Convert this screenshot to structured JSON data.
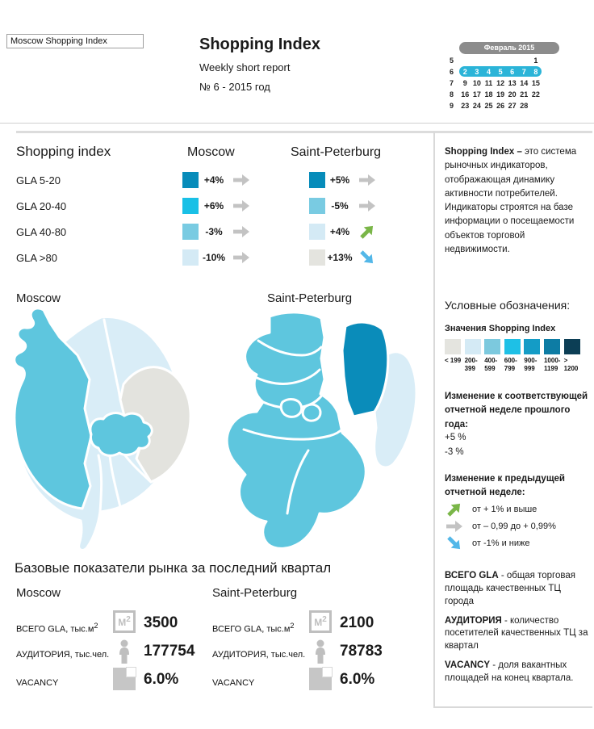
{
  "header": {
    "selector_value": "Moscow Shopping Index",
    "title": "Shopping Index",
    "subtitle": "Weekly short report",
    "issue": "№ 6 - 2015 год"
  },
  "calendar": {
    "month": "Февраль 2015",
    "colors": {
      "month_bg": "#8c8c8c",
      "selected_bg": "#2bb4d8"
    },
    "weeks": [
      {
        "num": "5",
        "days": [
          "",
          "",
          "",
          "",
          "",
          "",
          "1"
        ],
        "selected": false
      },
      {
        "num": "6",
        "days": [
          "2",
          "3",
          "4",
          "5",
          "6",
          "7",
          "8"
        ],
        "selected": true
      },
      {
        "num": "7",
        "days": [
          "9",
          "10",
          "11",
          "12",
          "13",
          "14",
          "15"
        ],
        "selected": false
      },
      {
        "num": "8",
        "days": [
          "16",
          "17",
          "18",
          "19",
          "20",
          "21",
          "22"
        ],
        "selected": false
      },
      {
        "num": "9",
        "days": [
          "23",
          "24",
          "25",
          "26",
          "27",
          "28",
          ""
        ],
        "selected": false
      }
    ]
  },
  "index_table": {
    "title": "Shopping index",
    "columns": [
      "Moscow",
      "Saint-Peterburg"
    ],
    "rows": [
      {
        "label": "GLA 5-20",
        "moscow": {
          "color": "#078cba",
          "value": "+4%",
          "trend": "flat"
        },
        "spb": {
          "color": "#078cba",
          "value": "+5%",
          "trend": "flat"
        }
      },
      {
        "label": "GLA 20-40",
        "moscow": {
          "color": "#19c0e6",
          "value": "+6%",
          "trend": "flat"
        },
        "spb": {
          "color": "#79cbe2",
          "value": "-5%",
          "trend": "flat"
        }
      },
      {
        "label": "GLA 40-80",
        "moscow": {
          "color": "#79cbe2",
          "value": "-3%",
          "trend": "flat"
        },
        "spb": {
          "color": "#d4eaf5",
          "value": "+4%",
          "trend": "up"
        }
      },
      {
        "label": "GLA >80",
        "moscow": {
          "color": "#d4eaf5",
          "value": "-10%",
          "trend": "flat"
        },
        "spb": {
          "color": "#e4e4df",
          "value": "+13%",
          "trend": "down"
        }
      }
    ]
  },
  "maps": {
    "moscow_title": "Moscow",
    "spb_title": "Saint-Peterburg",
    "colors": {
      "mid": "#5ec6de",
      "pale": "#d9edf7",
      "gray": "#e3e3de",
      "dark": "#0a8cba"
    }
  },
  "sidebar": {
    "about_lead": "Shopping Index – ",
    "about_text": "это система рыночных индикаторов, отображающая динамику активности потребителей. Индикаторы строятся на базе информации о посещаемости объектов торговой недвижимости.",
    "legend_title": "Условные обозначения:",
    "values_title": "Значения Shopping Index",
    "scale": [
      {
        "label": "< 199",
        "color": "#e4e4df"
      },
      {
        "label": "200-399",
        "color": "#d4eaf5"
      },
      {
        "label": "400-599",
        "color": "#7cc9de"
      },
      {
        "label": "600-799",
        "color": "#1ec0e6"
      },
      {
        "label": "900-999",
        "color": "#149cc6"
      },
      {
        "label": "1000-1199",
        "color": "#0d7ca4"
      },
      {
        "label": "> 1200",
        "color": "#0c3e55"
      }
    ],
    "yoy_title": "Изменение к соответствующей отчетной неделе прошлого года:",
    "yoy_values": [
      "+5 %",
      "-3 %"
    ],
    "wow_title": "Изменение к предыдущей отчетной неделе:",
    "wow_items": [
      {
        "trend": "up",
        "label": "от + 1% и выше"
      },
      {
        "trend": "flat",
        "label": "от – 0,99 до + 0,99%"
      },
      {
        "trend": "down",
        "label": "от -1% и ниже"
      }
    ],
    "definitions": [
      {
        "term": "ВСЕГО GLA",
        "text": " - общая торговая площадь качественных ТЦ города"
      },
      {
        "term": "АУДИТОРИЯ",
        "text": " - количество посетителей качественных ТЦ за квартал"
      },
      {
        "term": "VACANCY",
        "text": " - доля вакантных площадей на конец квартала."
      }
    ]
  },
  "market": {
    "title": "Базовые показатели рынка за последний квартал",
    "row_labels": {
      "gla": "ВСЕГО GLA, тыс.м",
      "gla_sup": "2",
      "audience": "АУДИТОРИЯ, тыс.чел.",
      "vacancy": "VACANCY"
    },
    "m2_icon_text": "М",
    "m2_icon_sup": "2",
    "cities": [
      {
        "name": "Moscow",
        "gla": "3500",
        "audience": "177754",
        "vacancy": "6.0%"
      },
      {
        "name": "Saint-Peterburg",
        "gla": "2100",
        "audience": "78783",
        "vacancy": "6.0%"
      }
    ]
  },
  "arrows": {
    "up_color": "#7ab648",
    "flat_color": "#c3c3c3",
    "down_color": "#53b7e8"
  }
}
